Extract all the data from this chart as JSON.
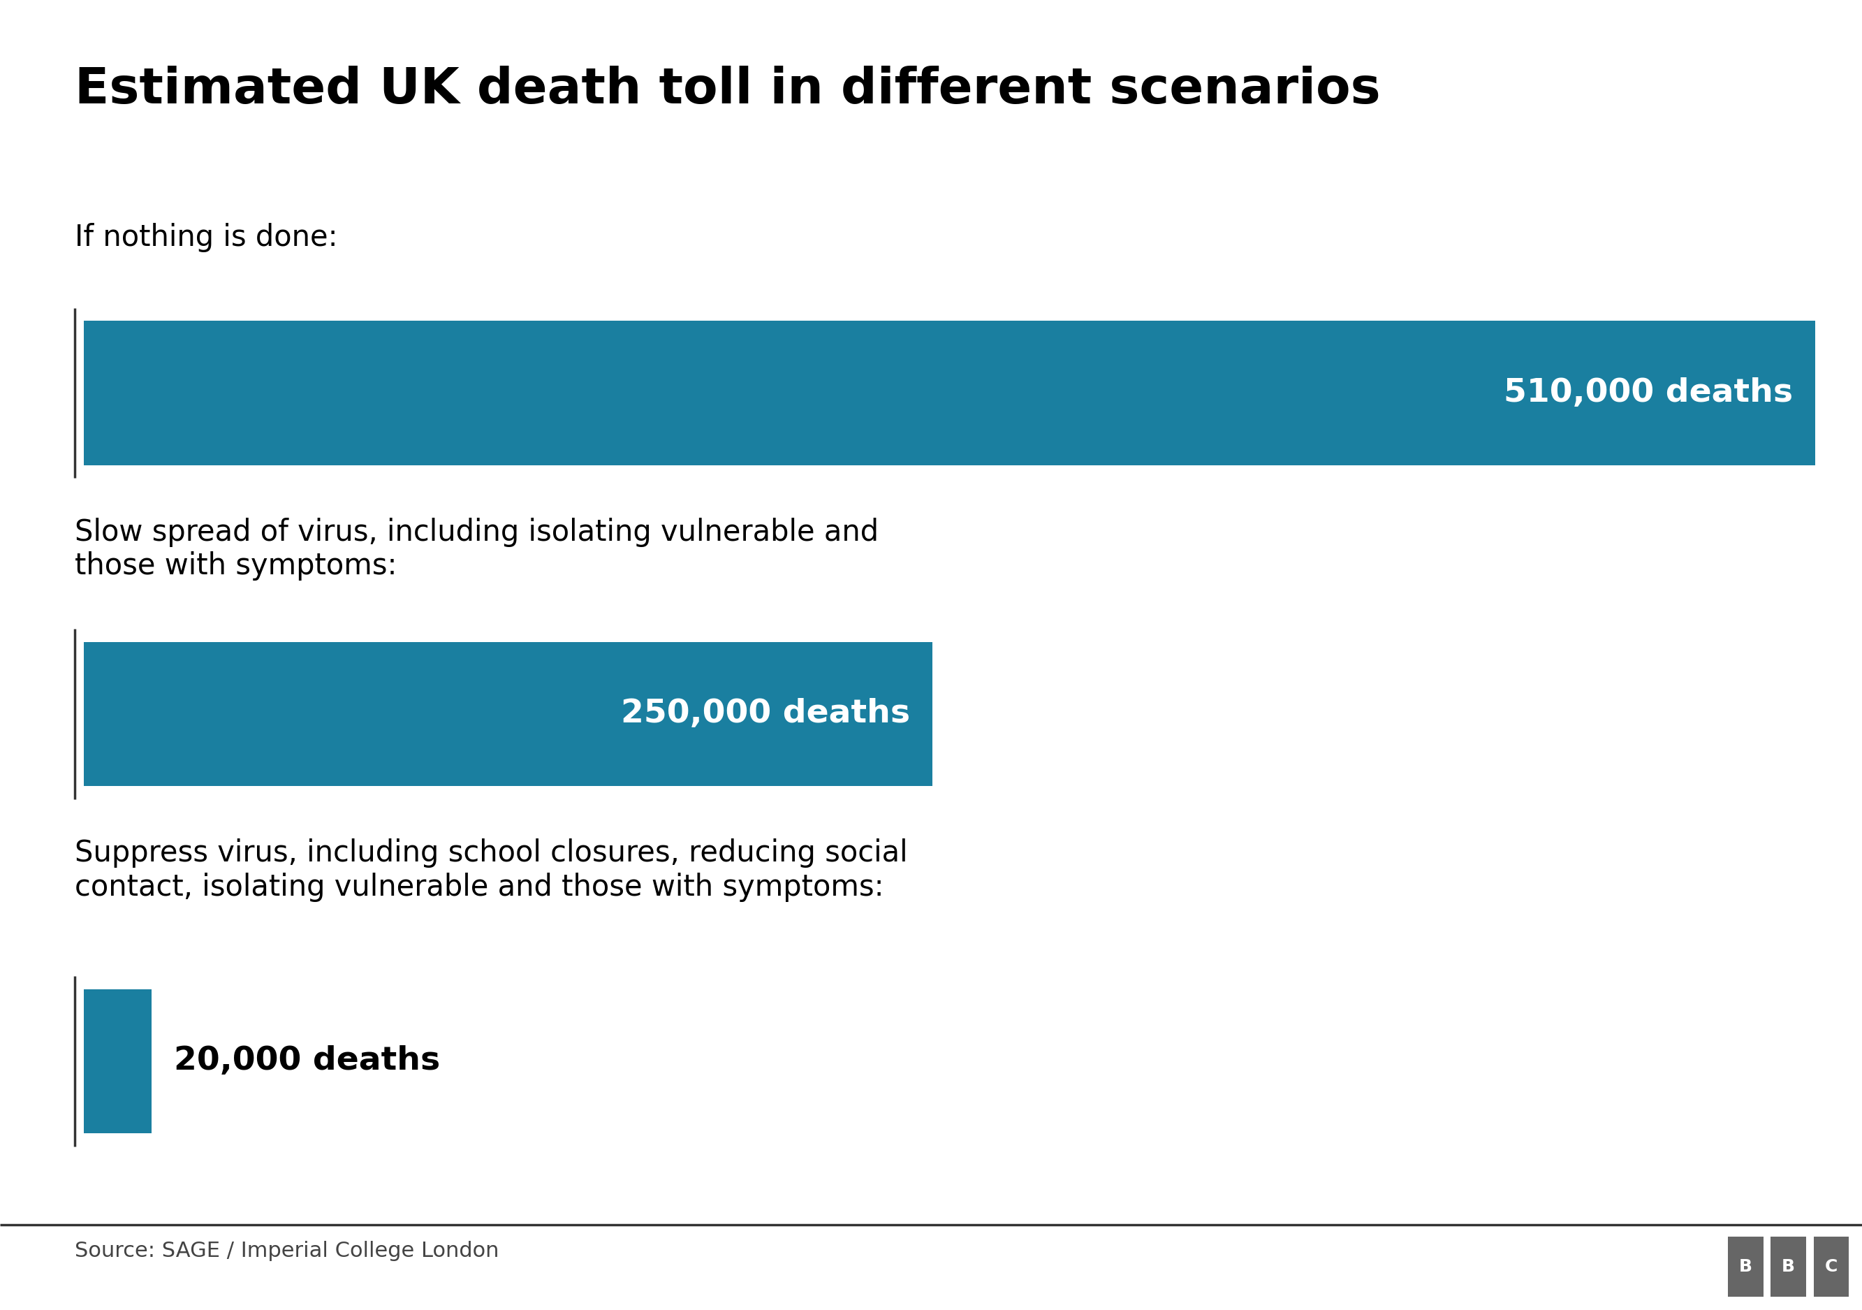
{
  "title": "Estimated UK death toll in different scenarios",
  "title_fontsize": 52,
  "bg_color": "#ffffff",
  "bar_color": "#1a7fa0",
  "scenarios": [
    {
      "label": "If nothing is done:",
      "value": 510000,
      "label_text": "510,000 deaths",
      "max_value": 510000
    },
    {
      "label": "Slow spread of virus, including isolating vulnerable and\nthose with symptoms:",
      "value": 250000,
      "label_text": "250,000 deaths",
      "max_value": 510000
    },
    {
      "label": "Suppress virus, including school closures, reducing social\ncontact, isolating vulnerable and those with symptoms:",
      "value": 20000,
      "label_text": "20,000 deaths",
      "max_value": 510000
    }
  ],
  "source_text": "Source: SAGE / Imperial College London",
  "source_fontsize": 22,
  "label_fontsize": 30,
  "bar_label_fontsize": 34,
  "separator_color": "#333333",
  "footer_line_color": "#333333",
  "bbc_bg": "#666666"
}
